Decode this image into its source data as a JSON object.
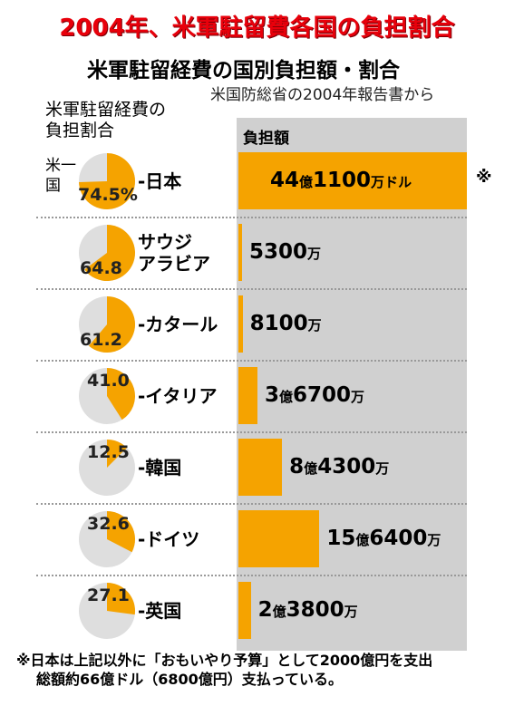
{
  "page_title": "2004年、米軍駐留費各国の負担割合",
  "chart_title": "米軍駐留経費の国別負担額・割合",
  "chart_subtitle": "米国防総省の2004年報告書から",
  "share_header": "米軍駐留経費の\n負担割合",
  "amount_header": "負担額",
  "us_label": "米一\n国",
  "note_mark": "※",
  "footnote": {
    "line1": "※日本は上記以外に「おもいやり予算」として2000億円を支出",
    "line2": "総額約66億ドル（6800億円）支払っている。"
  },
  "colors": {
    "share": "#f5a300",
    "pie_base": "#dedede",
    "title": "#e8000b",
    "panel": "#d0d0d0"
  },
  "chart_data": {
    "type": "bar",
    "title": "米軍駐留経費の国別負担額・割合",
    "subtitle": "米国防総省の2004年報告書から",
    "categories": [
      "日本",
      "サウジアラビア",
      "カタール",
      "イタリア",
      "韓国",
      "ドイツ",
      "英国"
    ],
    "series": [
      {
        "name": "負担額",
        "unit": "万ドル",
        "values": [
          441100,
          5300,
          8100,
          36700,
          84300,
          156400,
          23800
        ]
      },
      {
        "name": "米軍駐留経費の負担割合",
        "unit": "%",
        "values": [
          74.5,
          64.8,
          61.2,
          41.0,
          12.5,
          32.6,
          27.1
        ]
      }
    ],
    "rows": [
      {
        "country": "日本",
        "pct_label": "74.5%",
        "pct": 74.5,
        "amount": 441100,
        "amount_parts": [
          "44",
          "億",
          "1100",
          "万",
          "ドル"
        ]
      },
      {
        "country": "サウジ\nアラビア",
        "pct_label": "64.8",
        "pct": 64.8,
        "amount": 5300,
        "amount_parts": [
          "",
          "",
          "5300",
          "万",
          ""
        ]
      },
      {
        "country": "カタール",
        "pct_label": "61.2",
        "pct": 61.2,
        "amount": 8100,
        "amount_parts": [
          "",
          "",
          "8100",
          "万",
          ""
        ]
      },
      {
        "country": "イタリア",
        "pct_label": "41.0",
        "pct": 41.0,
        "amount": 36700,
        "amount_parts": [
          "3",
          "億",
          "6700",
          "万",
          ""
        ]
      },
      {
        "country": "韓国",
        "pct_label": "12.5",
        "pct": 12.5,
        "amount": 84300,
        "amount_parts": [
          "8",
          "億",
          "4300",
          "万",
          ""
        ]
      },
      {
        "country": "ドイツ",
        "pct_label": "32.6",
        "pct": 32.6,
        "amount": 156400,
        "amount_parts": [
          "15",
          "億",
          "6400",
          "万",
          ""
        ]
      },
      {
        "country": "英国",
        "pct_label": "27.1",
        "pct": 27.1,
        "amount": 23800,
        "amount_parts": [
          "2",
          "億",
          "3800",
          "万",
          ""
        ]
      }
    ]
  }
}
